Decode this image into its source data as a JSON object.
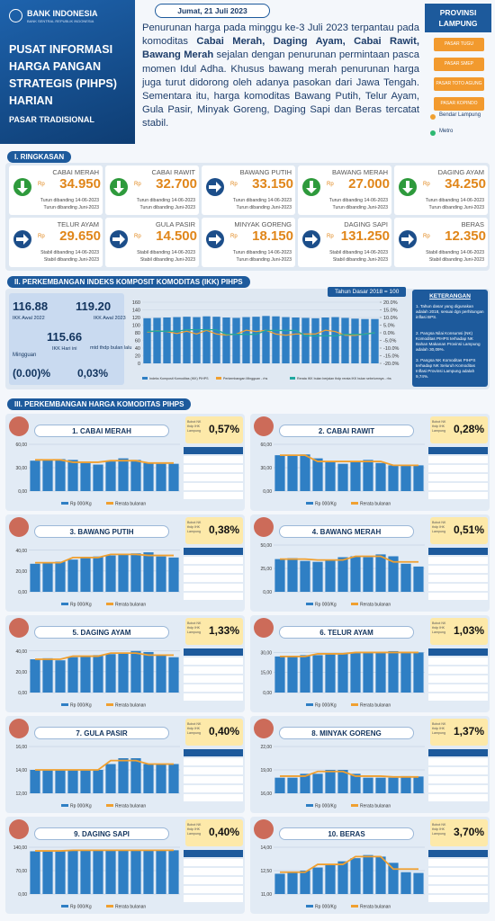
{
  "header": {
    "bank": "BANK INDONESIA",
    "bank_sub": "BANK SENTRAL REPUBLIK INDONESIA",
    "title": "PUSAT INFORMASI HARGA PANGAN STRATEGIS (PIHPS) HARIAN",
    "market": "PASAR TRADISIONAL",
    "date": "Jumat, 21 Juli 2023",
    "summary": [
      "Penurunan harga pada minggu ke-3 Juli 2023 terpantau pada komoditas ",
      "Cabai Merah, Daging Ayam, Cabai Rawit, Bawang Merah",
      " sejalan dengan penurunan permintaan pasca momen Idul Adha. Khusus bawang merah penurunan harga juga turut didorong oleh adanya pasokan dari Jawa Tengah. Sementara itu, harga komoditas Bawang Putih, Telur Ayam, Gula Pasir, Minyak Goreng, Daging Sapi dan Beras tercatat stabil."
    ],
    "province": "PROVINSI LAMPUNG",
    "markets": [
      "PASAR TUGU",
      "PASAR SMEP",
      "PASAR TOTO AGUNG",
      "PASAR KOPINDO"
    ],
    "cities": [
      {
        "name": "Bendar Lampung",
        "color": "#f0a030"
      },
      {
        "name": "Metro",
        "color": "#2eb872"
      }
    ]
  },
  "ringkasan": {
    "title": "I. RINGKASAN",
    "currency": "Rp",
    "cards": [
      {
        "name": "CABAI MERAH",
        "price": "34.950",
        "trend": "down",
        "notes": [
          "Turun dibanding 14-06-2023",
          "Turun dibanding Juni-2023"
        ]
      },
      {
        "name": "CABAI RAWIT",
        "price": "32.700",
        "trend": "down",
        "notes": [
          "Turun dibanding 14-06-2023",
          "Turun dibanding Juni-2023"
        ]
      },
      {
        "name": "BAWANG PUTIH",
        "price": "33.150",
        "trend": "right",
        "notes": [
          "Turun dibanding 14-06-2023",
          "Turun dibanding Juni-2023"
        ]
      },
      {
        "name": "BAWANG MERAH",
        "price": "27.000",
        "trend": "down",
        "notes": [
          "Turun dibanding 14-06-2023",
          "Turun dibanding Juni-2023"
        ]
      },
      {
        "name": "DAGING AYAM",
        "price": "34.250",
        "trend": "down",
        "notes": [
          "Turun dibanding 14-06-2023",
          "Turun dibanding Juni-2023"
        ]
      },
      {
        "name": "TELUR AYAM",
        "price": "29.650",
        "trend": "right",
        "notes": [
          "Stabil dibanding 14-06-2023",
          "Stabil dibanding Juni-2023"
        ]
      },
      {
        "name": "GULA PASIR",
        "price": "14.500",
        "trend": "right",
        "notes": [
          "Stabil dibanding 14-06-2023",
          "Stabil dibanding Juni-2023"
        ]
      },
      {
        "name": "MINYAK GORENG",
        "price": "18.150",
        "trend": "right",
        "notes": [
          "Turun dibanding 14-06-2023",
          "Turun dibanding Juni-2023"
        ]
      },
      {
        "name": "DAGING SAPI",
        "price": "131.250",
        "trend": "right",
        "notes": [
          "Stabil dibanding 14-06-2023",
          "Stabil dibanding Juni-2023"
        ]
      },
      {
        "name": "BERAS",
        "price": "12.350",
        "trend": "right",
        "notes": [
          "Stabil dibanding 14-06-2023",
          "Stabil dibanding Juni-2023"
        ]
      }
    ]
  },
  "ikk": {
    "title": "II. PERKEMBANGAN INDEKS KOMPOSIT KOMODITAS (IKK) PIHPS",
    "awal_2022": "116.88",
    "awal_2022_label": "IKK Awal 2022",
    "awal_2023": "119.20",
    "awal_2023_label": "IKK Awal 2023",
    "today": "115.66",
    "today_label": "IKK Hari ini",
    "weekly_label": "Mingguan",
    "mtd_label": "mtd thdp bulan lalu",
    "weekly": "(0.00)%",
    "mtd": "0,03%",
    "base": "Tahun Dasar 2018 = 100",
    "chart": {
      "type": "bar",
      "ylim": [
        0,
        160
      ],
      "yticks": [
        0,
        20,
        40,
        60,
        80,
        100,
        120,
        140,
        160
      ],
      "y2lim": [
        -20,
        20
      ],
      "y2ticks": [
        {
          "value": 20,
          "label": "20.0%"
        },
        {
          "value": 15,
          "label": "15.0%"
        },
        {
          "value": 10,
          "label": "10.0%"
        },
        {
          "value": 5,
          "label": "5.0%"
        },
        {
          "value": 0,
          "label": "0.0%"
        },
        {
          "value": -5,
          "label": "-5.0%"
        },
        {
          "value": -10,
          "label": "-10.0%"
        },
        {
          "value": -15,
          "label": "-15.0%"
        },
        {
          "value": -20,
          "label": "-20.0%"
        }
      ],
      "series": [
        {
          "name": "Indeks Komposit Komoditas (IKK) PIHPS",
          "color": "#2f7fc4",
          "values": [
            118,
            119,
            120,
            121,
            122,
            121,
            123,
            122,
            120,
            119,
            121,
            122,
            124,
            123,
            121,
            120,
            119,
            118,
            120,
            121,
            119,
            117,
            116,
            116
          ]
        },
        {
          "name": "Perkembangan Mingguan - rhs",
          "color": "#f0a030",
          "axis": "y2",
          "values": [
            0.5,
            1.2,
            0.8,
            -0.5,
            1.0,
            -0.8,
            1.6,
            -0.8,
            -1.5,
            -0.9,
            1.7,
            0.8,
            1.6,
            -0.8,
            -1.6,
            -0.8,
            -0.8,
            -0.8,
            1.7,
            0.8,
            -1.6,
            -1.7,
            -0.8,
            0.0
          ]
        },
        {
          "name": "Rerata IKK bulan berjalan thdp rerata IKK bulan sebelumnya - rhs",
          "color": "#20a8a0",
          "axis": "y2",
          "values": [
            1,
            1,
            1,
            1,
            2,
            2,
            2,
            2,
            -1,
            -1,
            -1,
            -1,
            1.5,
            1.5,
            1.5,
            1.5,
            -2,
            -2,
            -2,
            -2,
            -1,
            -1,
            -1,
            0.03
          ]
        }
      ]
    },
    "notes_title": "KETERANGAN",
    "notes": [
      "1. Tahun dasar yang digunakan adalah 2018, sesuai dgn perhitungan inflasi BPS.",
      "2. Pangsa Nilai Konsumsi (NK) Komoditas PIHPS terhadap NK Bahan Makanan Provinsi Lampung adalah 30,09%.",
      "3. Pangsa NK Komoditas PIHPS terhadap NK Seluruh Komoditas Inflasi Provinsi Lampung adalah 9,74%."
    ]
  },
  "harga": {
    "title": "III. PERKEMBANGAN HARGA KOMODITAS PIHPS",
    "weight_label": "Bobot NK thdp IHK Lampung",
    "legend": [
      "Rp 000/Kg",
      "Rerata bulanan"
    ],
    "panels": [
      {
        "title": "1. CABAI MERAH",
        "weight": "0,57%",
        "ylim": [
          0,
          60
        ],
        "yticks": [
          {
            "value": 0,
            "label": "0,00"
          },
          {
            "value": 30,
            "label": "30,00"
          },
          {
            "value": 60,
            "label": "60,00"
          }
        ],
        "values": [
          39,
          40,
          41,
          40,
          36,
          34,
          38,
          42,
          40,
          36,
          35,
          35
        ],
        "avg": [
          40,
          40,
          40,
          37,
          37,
          37,
          39,
          39,
          39,
          36,
          36,
          36
        ]
      },
      {
        "title": "2. CABAI RAWIT",
        "weight": "0,28%",
        "ylim": [
          0,
          60
        ],
        "yticks": [
          {
            "value": 0,
            "label": "0,00"
          },
          {
            "value": 30,
            "label": "30,00"
          },
          {
            "value": 60,
            "label": "60,00"
          }
        ],
        "values": [
          46,
          45,
          47,
          42,
          38,
          35,
          38,
          40,
          36,
          33,
          33,
          33
        ],
        "avg": [
          46,
          46,
          46,
          38,
          38,
          38,
          38,
          38,
          38,
          33,
          33,
          33
        ]
      },
      {
        "title": "3. BAWANG PUTIH",
        "weight": "0,38%",
        "ylim": [
          0,
          45
        ],
        "yticks": [
          {
            "value": 0,
            "label": "0,00"
          },
          {
            "value": 20,
            "label": "20,00"
          },
          {
            "value": 40,
            "label": "40,00"
          }
        ],
        "values": [
          27,
          28,
          29,
          31,
          33,
          34,
          35,
          36,
          37,
          38,
          34,
          33
        ],
        "avg": [
          28,
          28,
          28,
          33,
          33,
          33,
          36,
          36,
          36,
          35,
          35,
          35
        ]
      },
      {
        "title": "4. BAWANG MERAH",
        "weight": "0,51%",
        "ylim": [
          0,
          50
        ],
        "yticks": [
          {
            "value": 0,
            "label": "0,00"
          },
          {
            "value": 25,
            "label": "25,00"
          },
          {
            "value": 50,
            "label": "50,00"
          }
        ],
        "values": [
          35,
          36,
          33,
          32,
          34,
          37,
          38,
          37,
          40,
          38,
          30,
          27
        ],
        "avg": [
          35,
          35,
          35,
          34,
          34,
          34,
          38,
          38,
          38,
          32,
          32,
          32
        ]
      },
      {
        "title": "5. DAGING AYAM",
        "weight": "1,33%",
        "ylim": [
          0,
          45
        ],
        "yticks": [
          {
            "value": 0,
            "label": "0,00"
          },
          {
            "value": 20,
            "label": "20,00"
          },
          {
            "value": 40,
            "label": "40,00"
          }
        ],
        "values": [
          32,
          33,
          31,
          34,
          35,
          36,
          37,
          38,
          40,
          39,
          36,
          34
        ],
        "avg": [
          32,
          32,
          32,
          35,
          35,
          35,
          38,
          38,
          38,
          36,
          36,
          36
        ]
      },
      {
        "title": "6. TELUR AYAM",
        "weight": "1,03%",
        "ylim": [
          0,
          35
        ],
        "yticks": [
          {
            "value": 0,
            "label": "0,00"
          },
          {
            "value": 15,
            "label": "15,00"
          },
          {
            "value": 30,
            "label": "30,00"
          }
        ],
        "values": [
          27,
          27,
          28,
          28,
          29,
          29,
          30,
          30,
          30,
          31,
          30,
          30
        ],
        "avg": [
          27,
          27,
          27,
          29,
          29,
          29,
          30,
          30,
          30,
          30,
          30,
          30
        ]
      },
      {
        "title": "7. GULA PASIR",
        "weight": "0,40%",
        "ylim": [
          12,
          16
        ],
        "yticks": [
          {
            "value": 12,
            "label": "12,00"
          },
          {
            "value": 14,
            "label": "14,00"
          },
          {
            "value": 16,
            "label": "16,00"
          }
        ],
        "values": [
          14,
          14,
          14,
          14,
          14,
          14,
          14.5,
          15,
          15,
          14.5,
          14.5,
          14.5
        ],
        "avg": [
          14,
          14,
          14,
          14,
          14,
          14,
          14.8,
          14.8,
          14.8,
          14.5,
          14.5,
          14.5
        ]
      },
      {
        "title": "8. MINYAK GORENG",
        "weight": "1,37%",
        "ylim": [
          16,
          22
        ],
        "yticks": [
          {
            "value": 16,
            "label": "16,00"
          },
          {
            "value": 19,
            "label": "19,00"
          },
          {
            "value": 22,
            "label": "22,00"
          }
        ],
        "values": [
          18,
          18,
          18.5,
          18.5,
          19,
          19,
          18.5,
          18,
          18,
          18,
          18.2,
          18.15
        ],
        "avg": [
          18.2,
          18.2,
          18.2,
          18.8,
          18.8,
          18.8,
          18.2,
          18.2,
          18.2,
          18.1,
          18.1,
          18.1
        ]
      },
      {
        "title": "9. DAGING SAPI",
        "weight": "0,40%",
        "ylim": [
          0,
          140
        ],
        "yticks": [
          {
            "value": 0,
            "label": "0,00"
          },
          {
            "value": 70,
            "label": "70,00"
          },
          {
            "value": 140,
            "label": "140,00"
          }
        ],
        "values": [
          128,
          129,
          130,
          130,
          131,
          131,
          130,
          131,
          131,
          131,
          131,
          131
        ],
        "avg": [
          129,
          129,
          129,
          131,
          131,
          131,
          131,
          131,
          131,
          131,
          131,
          131
        ]
      },
      {
        "title": "10. BERAS",
        "weight": "3,70%",
        "ylim": [
          11,
          14
        ],
        "yticks": [
          {
            "value": 11,
            "label": "11,00"
          },
          {
            "value": 12.5,
            "label": "12,50"
          },
          {
            "value": 14,
            "label": "14,00"
          }
        ],
        "values": [
          12.3,
          12.4,
          12.5,
          12.7,
          12.9,
          13.1,
          13.3,
          13.5,
          13.4,
          13.0,
          12.4,
          12.35
        ],
        "avg": [
          12.4,
          12.4,
          12.4,
          12.9,
          12.9,
          12.9,
          13.4,
          13.4,
          13.4,
          12.6,
          12.6,
          12.6
        ]
      }
    ]
  }
}
